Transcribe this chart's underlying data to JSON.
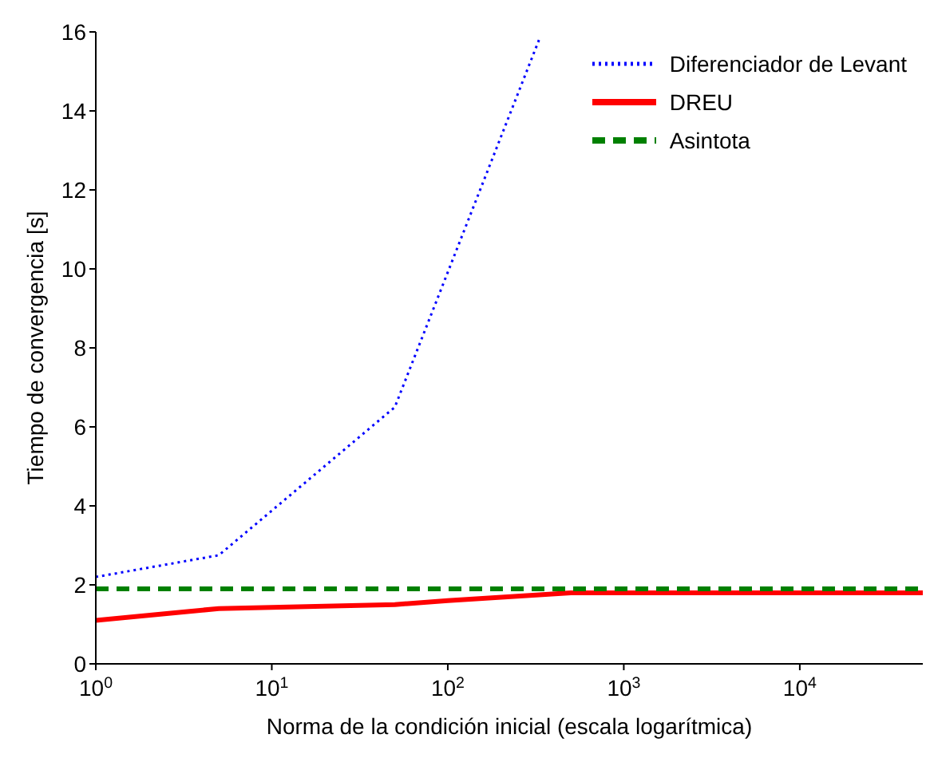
{
  "chart_data": {
    "type": "line",
    "xlabel": "Norma de la condición inicial (escala logarítmica)",
    "ylabel": "Tiempo de convergencia [s]",
    "log": "x",
    "xlim": [
      1,
      50000
    ],
    "xticks": [
      {
        "value": 1,
        "label": "10$^{0}$"
      },
      {
        "value": 10,
        "label": "10$^{1}$"
      },
      {
        "value": 100,
        "label": "10$^{2}$"
      },
      {
        "value": 1000,
        "label": "10$^{3}$"
      },
      {
        "value": 10000,
        "label": "10$^{4}$"
      }
    ],
    "ylim": [
      0,
      16
    ],
    "yticks": [
      0,
      2,
      4,
      6,
      8,
      10,
      12,
      14,
      16
    ],
    "grid": false,
    "legend": "top right",
    "marker": "none",
    "series": [
      {
        "name": "Diferenciador de Levant",
        "color": "#0000ff",
        "line_style": "dotted",
        "x": [
          1,
          5,
          50,
          330
        ],
        "values": [
          2.2,
          2.75,
          6.5,
          15.8
        ]
      },
      {
        "name": "DREU",
        "color": "#ff0000",
        "line_style": "solid",
        "x": [
          1,
          5,
          50,
          100,
          500,
          5000,
          50000
        ],
        "values": [
          1.1,
          1.4,
          1.5,
          1.6,
          1.8,
          1.8,
          1.8
        ]
      },
      {
        "name": "Asintota",
        "color": "#008000",
        "line_style": "dashed",
        "x": [
          1,
          50000
        ],
        "values": [
          1.9,
          1.9
        ]
      }
    ]
  }
}
